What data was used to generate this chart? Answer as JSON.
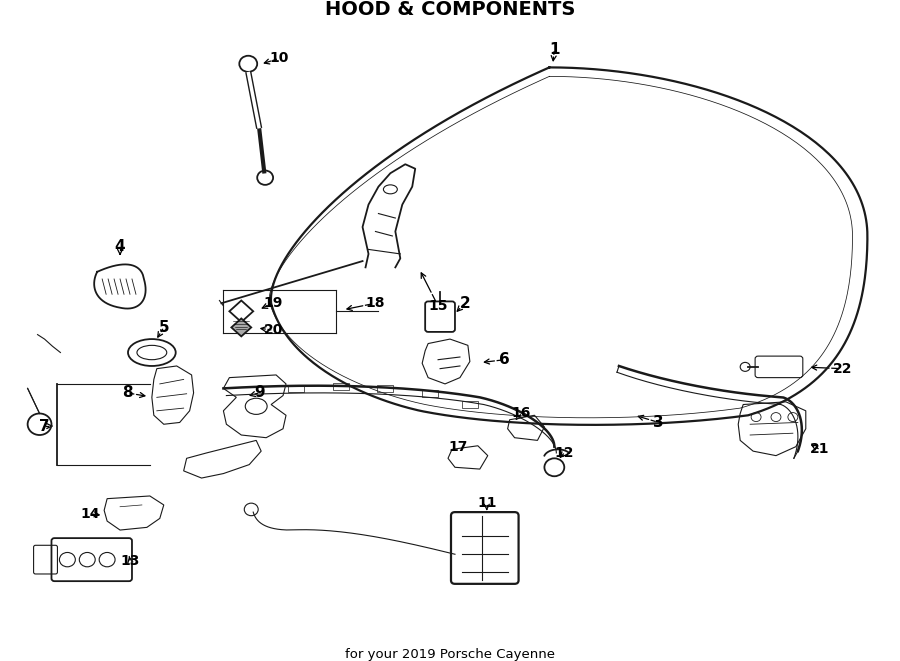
{
  "title": "HOOD & COMPONENTS",
  "subtitle": "for your 2019 Porsche Cayenne",
  "bg_color": "#ffffff",
  "line_color": "#1a1a1a",
  "figsize": [
    9.0,
    6.61
  ],
  "dpi": 100
}
